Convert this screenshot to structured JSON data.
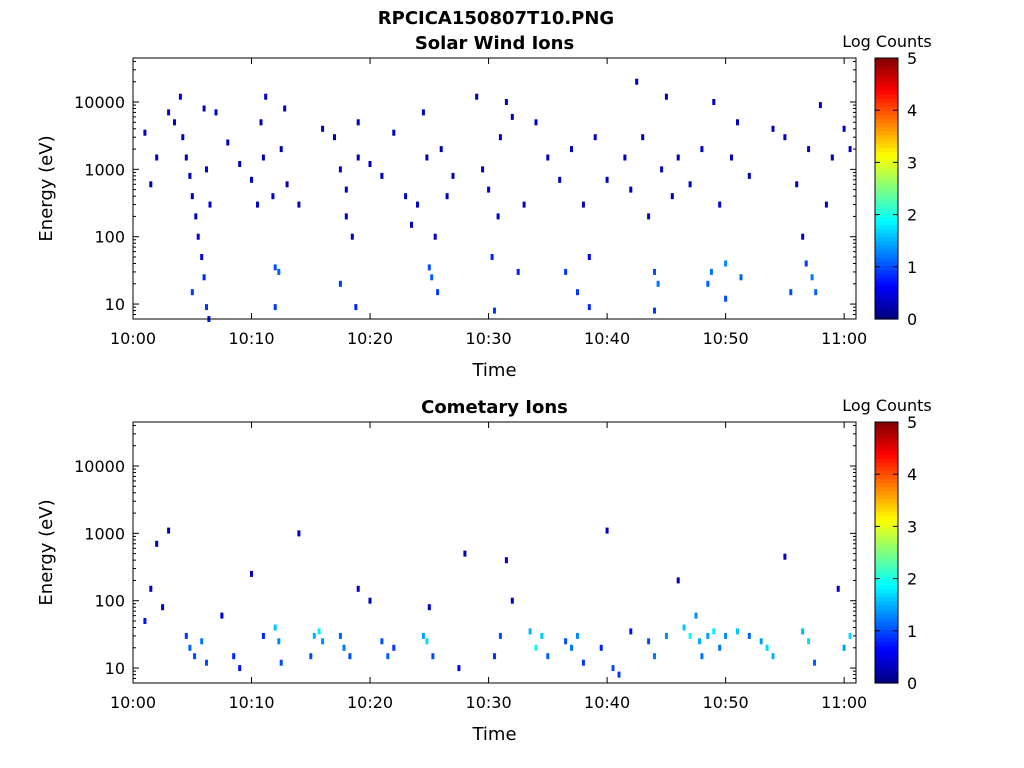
{
  "figure_title": "RPCICA150807T10.PNG",
  "colorbar": {
    "label": "Log Counts",
    "ticks": [
      "5",
      "4",
      "3",
      "2",
      "1",
      "0"
    ],
    "range": [
      0,
      5
    ],
    "colormap": "jet"
  },
  "chart_data": [
    {
      "type": "heatmap",
      "title": "Solar Wind Ions",
      "xlabel": "Time",
      "ylabel": "Energy (eV)",
      "xticks": [
        "10:00",
        "10:10",
        "10:20",
        "10:30",
        "10:40",
        "10:50",
        "11:00"
      ],
      "yticks": [
        "10",
        "100",
        "1000",
        "10000"
      ],
      "xlim": [
        "10:00",
        "11:01"
      ],
      "ylim": [
        6,
        45000
      ],
      "yscale": "log",
      "grid": false,
      "cells": [
        [
          1.0,
          3500,
          0.3
        ],
        [
          1.5,
          600,
          0.3
        ],
        [
          2.0,
          1500,
          0.3
        ],
        [
          3.0,
          7000,
          0.4
        ],
        [
          3.5,
          5000,
          0.3
        ],
        [
          4.0,
          12000,
          0.4
        ],
        [
          4.2,
          3000,
          0.3
        ],
        [
          4.5,
          1500,
          0.3
        ],
        [
          4.8,
          800,
          0.3
        ],
        [
          5.0,
          400,
          0.4
        ],
        [
          5.0,
          15,
          0.9
        ],
        [
          5.3,
          200,
          0.3
        ],
        [
          5.5,
          100,
          0.4
        ],
        [
          5.8,
          50,
          0.5
        ],
        [
          6.0,
          25,
          0.8
        ],
        [
          6.0,
          8000,
          0.3
        ],
        [
          6.2,
          1000,
          0.4
        ],
        [
          6.5,
          300,
          0.4
        ],
        [
          6.2,
          9,
          0.9
        ],
        [
          6.4,
          6,
          0.7
        ],
        [
          7.0,
          7000,
          0.3
        ],
        [
          8.0,
          2500,
          0.3
        ],
        [
          9.0,
          1200,
          0.3
        ],
        [
          10.0,
          700,
          0.4
        ],
        [
          10.5,
          300,
          0.4
        ],
        [
          10.8,
          5000,
          0.3
        ],
        [
          11.0,
          1500,
          0.3
        ],
        [
          11.2,
          12000,
          0.4
        ],
        [
          11.8,
          400,
          0.4
        ],
        [
          12.0,
          35,
          1.0
        ],
        [
          12.3,
          30,
          1.1
        ],
        [
          12.0,
          9,
          0.9
        ],
        [
          12.5,
          2000,
          0.3
        ],
        [
          12.8,
          8000,
          0.3
        ],
        [
          13.0,
          600,
          0.3
        ],
        [
          14.0,
          300,
          0.3
        ],
        [
          16.0,
          4000,
          0.3
        ],
        [
          17.0,
          3000,
          0.3
        ],
        [
          17.5,
          1000,
          0.3
        ],
        [
          18.0,
          500,
          0.4
        ],
        [
          17.5,
          20,
          0.9
        ],
        [
          18.0,
          200,
          0.4
        ],
        [
          18.5,
          100,
          0.4
        ],
        [
          19.0,
          1500,
          0.3
        ],
        [
          19.0,
          5000,
          0.3
        ],
        [
          18.8,
          9,
          0.8
        ],
        [
          20.0,
          1200,
          0.3
        ],
        [
          21.0,
          800,
          0.3
        ],
        [
          22.0,
          3500,
          0.3
        ],
        [
          23.0,
          400,
          0.3
        ],
        [
          23.5,
          150,
          0.4
        ],
        [
          24.0,
          300,
          0.4
        ],
        [
          24.5,
          7000,
          0.3
        ],
        [
          24.8,
          1500,
          0.3
        ],
        [
          25.0,
          35,
          1.0
        ],
        [
          25.2,
          25,
          1.1
        ],
        [
          25.5,
          100,
          0.4
        ],
        [
          25.7,
          15,
          0.9
        ],
        [
          26.0,
          2000,
          0.3
        ],
        [
          26.5,
          400,
          0.3
        ],
        [
          27.0,
          800,
          0.3
        ],
        [
          29.0,
          12000,
          0.3
        ],
        [
          29.5,
          1000,
          0.3
        ],
        [
          30.0,
          500,
          0.4
        ],
        [
          30.3,
          50,
          0.8
        ],
        [
          30.5,
          8,
          0.9
        ],
        [
          30.8,
          200,
          0.4
        ],
        [
          31.0,
          3000,
          0.3
        ],
        [
          31.5,
          10000,
          0.3
        ],
        [
          32.0,
          6000,
          0.3
        ],
        [
          32.5,
          30,
          0.8
        ],
        [
          33.0,
          300,
          0.3
        ],
        [
          34.0,
          5000,
          0.3
        ],
        [
          35.0,
          1500,
          0.3
        ],
        [
          36.0,
          700,
          0.3
        ],
        [
          36.5,
          30,
          0.9
        ],
        [
          37.0,
          2000,
          0.3
        ],
        [
          37.5,
          15,
          0.9
        ],
        [
          38.0,
          300,
          0.3
        ],
        [
          38.5,
          50,
          0.6
        ],
        [
          38.5,
          9,
          0.8
        ],
        [
          39.0,
          3000,
          0.3
        ],
        [
          40.0,
          700,
          0.3
        ],
        [
          41.5,
          1500,
          0.3
        ],
        [
          42.0,
          500,
          0.3
        ],
        [
          42.5,
          20000,
          0.3
        ],
        [
          43.0,
          3000,
          0.3
        ],
        [
          43.5,
          200,
          0.4
        ],
        [
          44.0,
          30,
          1.0
        ],
        [
          44.3,
          20,
          1.2
        ],
        [
          44.0,
          8,
          0.9
        ],
        [
          44.6,
          1000,
          0.3
        ],
        [
          45.0,
          12000,
          0.3
        ],
        [
          45.5,
          400,
          0.3
        ],
        [
          46.0,
          1500,
          0.3
        ],
        [
          47.0,
          600,
          0.3
        ],
        [
          48.0,
          2000,
          0.3
        ],
        [
          48.5,
          20,
          1.1
        ],
        [
          48.8,
          30,
          1.2
        ],
        [
          49.0,
          10000,
          0.3
        ],
        [
          49.5,
          300,
          0.4
        ],
        [
          50.0,
          40,
          1.3
        ],
        [
          50.0,
          12,
          1.0
        ],
        [
          50.5,
          1500,
          0.3
        ],
        [
          51.0,
          5000,
          0.3
        ],
        [
          51.3,
          25,
          1.1
        ],
        [
          52.0,
          800,
          0.3
        ],
        [
          54.0,
          4000,
          0.3
        ],
        [
          55.0,
          3000,
          0.3
        ],
        [
          55.5,
          15,
          1.0
        ],
        [
          56.0,
          600,
          0.3
        ],
        [
          56.5,
          100,
          0.4
        ],
        [
          56.8,
          40,
          0.9
        ],
        [
          57.0,
          2000,
          0.3
        ],
        [
          57.3,
          25,
          1.2
        ],
        [
          57.6,
          15,
          1.1
        ],
        [
          58.0,
          9000,
          0.3
        ],
        [
          58.5,
          300,
          0.4
        ],
        [
          59.0,
          1500,
          0.3
        ],
        [
          60.0,
          4000,
          0.3
        ],
        [
          60.5,
          2000,
          0.3
        ]
      ]
    },
    {
      "type": "heatmap",
      "title": "Cometary Ions",
      "xlabel": "Time",
      "ylabel": "Energy (eV)",
      "xticks": [
        "10:00",
        "10:10",
        "10:20",
        "10:30",
        "10:40",
        "10:50",
        "11:00"
      ],
      "yticks": [
        "10",
        "100",
        "1000",
        "10000"
      ],
      "xlim": [
        "10:00",
        "11:01"
      ],
      "ylim": [
        6,
        45000
      ],
      "yscale": "log",
      "grid": false,
      "cells": [
        [
          1.0,
          50,
          0.7
        ],
        [
          1.5,
          150,
          0.4
        ],
        [
          2.0,
          700,
          0.3
        ],
        [
          2.5,
          80,
          0.4
        ],
        [
          3.0,
          1100,
          0.3
        ],
        [
          4.5,
          30,
          0.9
        ],
        [
          4.8,
          20,
          1.1
        ],
        [
          5.2,
          15,
          1.0
        ],
        [
          5.8,
          25,
          1.2
        ],
        [
          6.2,
          12,
          1.0
        ],
        [
          7.5,
          60,
          0.4
        ],
        [
          8.5,
          15,
          0.8
        ],
        [
          9.0,
          10,
          0.7
        ],
        [
          10.0,
          250,
          0.3
        ],
        [
          11.0,
          30,
          0.8
        ],
        [
          12.0,
          40,
          1.6
        ],
        [
          12.3,
          25,
          1.3
        ],
        [
          12.5,
          12,
          1.0
        ],
        [
          14.0,
          1000,
          0.3
        ],
        [
          15.0,
          15,
          1.0
        ],
        [
          15.3,
          30,
          1.5
        ],
        [
          15.7,
          35,
          1.8
        ],
        [
          16.0,
          25,
          1.3
        ],
        [
          17.5,
          30,
          1.1
        ],
        [
          17.8,
          20,
          1.2
        ],
        [
          18.3,
          15,
          1.0
        ],
        [
          19.0,
          150,
          0.4
        ],
        [
          20.0,
          100,
          0.3
        ],
        [
          21.0,
          25,
          1.0
        ],
        [
          21.5,
          15,
          1.1
        ],
        [
          22.0,
          20,
          0.9
        ],
        [
          24.5,
          30,
          1.4
        ],
        [
          24.8,
          25,
          1.7
        ],
        [
          25.0,
          80,
          0.4
        ],
        [
          25.3,
          15,
          1.0
        ],
        [
          27.5,
          10,
          0.6
        ],
        [
          28.0,
          500,
          0.3
        ],
        [
          30.5,
          15,
          0.9
        ],
        [
          31.0,
          30,
          1.0
        ],
        [
          31.5,
          400,
          0.3
        ],
        [
          32.0,
          100,
          0.4
        ],
        [
          33.5,
          35,
          1.5
        ],
        [
          34.0,
          20,
          1.9
        ],
        [
          34.5,
          30,
          1.6
        ],
        [
          35.0,
          15,
          1.1
        ],
        [
          36.5,
          25,
          1.0
        ],
        [
          37.0,
          20,
          1.2
        ],
        [
          37.5,
          30,
          1.3
        ],
        [
          38.0,
          12,
          0.9
        ],
        [
          39.5,
          20,
          0.8
        ],
        [
          40.0,
          1100,
          0.3
        ],
        [
          40.5,
          10,
          1.0
        ],
        [
          41.0,
          8,
          0.9
        ],
        [
          42.0,
          35,
          0.7
        ],
        [
          43.5,
          25,
          1.0
        ],
        [
          44.0,
          15,
          1.2
        ],
        [
          45.0,
          30,
          1.3
        ],
        [
          46.0,
          200,
          0.3
        ],
        [
          46.5,
          40,
          1.6
        ],
        [
          47.0,
          30,
          1.9
        ],
        [
          47.5,
          60,
          1.3
        ],
        [
          47.8,
          25,
          1.5
        ],
        [
          48.0,
          15,
          1.2
        ],
        [
          48.5,
          30,
          1.4
        ],
        [
          49.0,
          35,
          1.8
        ],
        [
          49.5,
          20,
          1.2
        ],
        [
          50.0,
          30,
          1.3
        ],
        [
          51.0,
          35,
          1.6
        ],
        [
          52.0,
          30,
          1.1
        ],
        [
          53.0,
          25,
          1.4
        ],
        [
          53.5,
          20,
          1.7
        ],
        [
          54.0,
          15,
          1.5
        ],
        [
          55.0,
          450,
          0.3
        ],
        [
          56.5,
          35,
          1.5
        ],
        [
          57.0,
          25,
          1.7
        ],
        [
          57.5,
          12,
          1.1
        ],
        [
          59.5,
          150,
          0.4
        ],
        [
          60.0,
          20,
          1.4
        ],
        [
          60.5,
          30,
          1.7
        ]
      ]
    }
  ]
}
